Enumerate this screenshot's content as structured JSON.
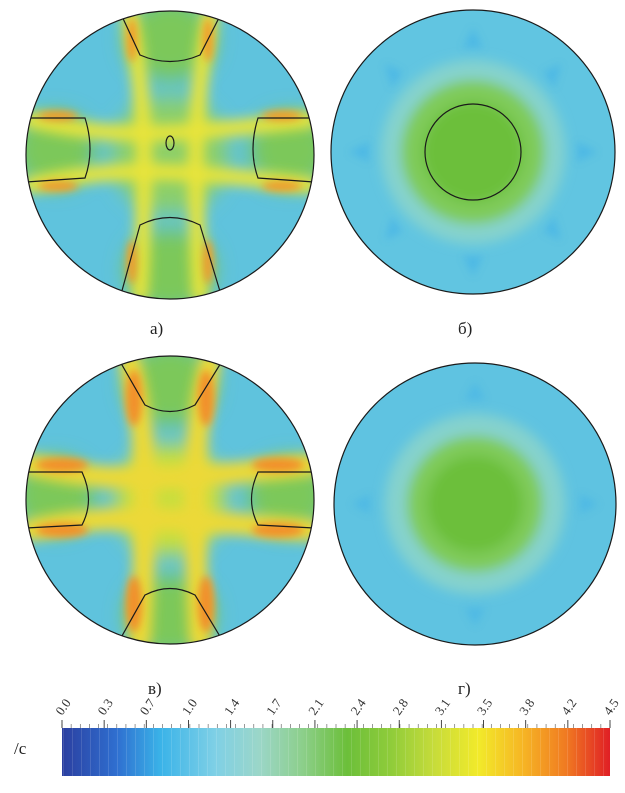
{
  "panels": [
    {
      "id": "a",
      "label": "а)",
      "pattern": "cross",
      "variant": "contours"
    },
    {
      "id": "b",
      "label": "б)",
      "pattern": "radial",
      "variant": "contours"
    },
    {
      "id": "v",
      "label": "в)",
      "pattern": "cross",
      "variant": "intense"
    },
    {
      "id": "g",
      "label": "г)",
      "pattern": "radial",
      "variant": "smooth"
    }
  ],
  "colorbar": {
    "unit": "/с",
    "ticks": [
      "0.0",
      "0.3",
      "0.7",
      "1.0",
      "1.4",
      "1.7",
      "2.1",
      "2.4",
      "2.8",
      "3.1",
      "3.5",
      "3.8",
      "4.2",
      "4.5"
    ],
    "min": 0.0,
    "max": 4.5,
    "colors": [
      "#2b3fa0",
      "#2f6fd0",
      "#3ab3e8",
      "#7fd0e6",
      "#9bd6c8",
      "#8ccf8a",
      "#6cbf3a",
      "#8fcc3a",
      "#c7dc3a",
      "#f2ea2a",
      "#f6b624",
      "#f07a22",
      "#e83c22",
      "#e01f25"
    ]
  },
  "colors": {
    "background": "#5bc2e0",
    "green": "#6fbf4a",
    "light_green": "#9ccf55",
    "yellow": "#e8e536",
    "orange": "#f3962a",
    "contour": "#1a1a1a"
  }
}
